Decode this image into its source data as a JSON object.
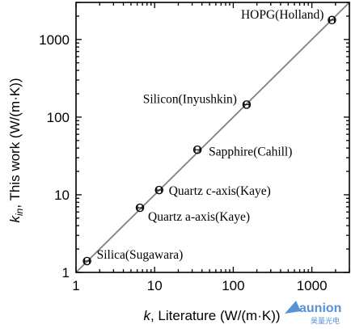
{
  "chart_data": {
    "type": "scatter",
    "xlabel_symbol": "k",
    "xlabel_rest": ", Literature (W/(m·K))",
    "ylabel_symbol": "k",
    "ylabel_sub": "in",
    "ylabel_rest": ", This work (W/(m·K))",
    "xscale": "log",
    "yscale": "log",
    "xlim": [
      1,
      3000
    ],
    "ylim": [
      1,
      3000
    ],
    "x_ticks": [
      1,
      10,
      100,
      1000
    ],
    "y_ticks": [
      1,
      10,
      100,
      1000
    ],
    "x_tick_labels": [
      "1",
      "10",
      "100",
      "1000"
    ],
    "y_tick_labels": [
      "1",
      "10",
      "100",
      "1000"
    ],
    "reference_line": "y = x",
    "grid": false,
    "points": [
      {
        "label": "Silica(Sugawara)",
        "x": 1.38,
        "y": 1.4
      },
      {
        "label": "Quartz a-axis(Kaye)",
        "x": 6.5,
        "y": 6.8
      },
      {
        "label": "Quartz c-axis(Kaye)",
        "x": 11.4,
        "y": 11.5
      },
      {
        "label": "Sapphire(Cahill)",
        "x": 35,
        "y": 38
      },
      {
        "label": "Silicon(Inyushkin)",
        "x": 148,
        "y": 145
      },
      {
        "label": "HOPG(Holland)",
        "x": 1800,
        "y": 1780
      }
    ]
  },
  "watermark": {
    "text": "aunion",
    "subtext": "昊量光电",
    "color": "#3a7fd0"
  }
}
